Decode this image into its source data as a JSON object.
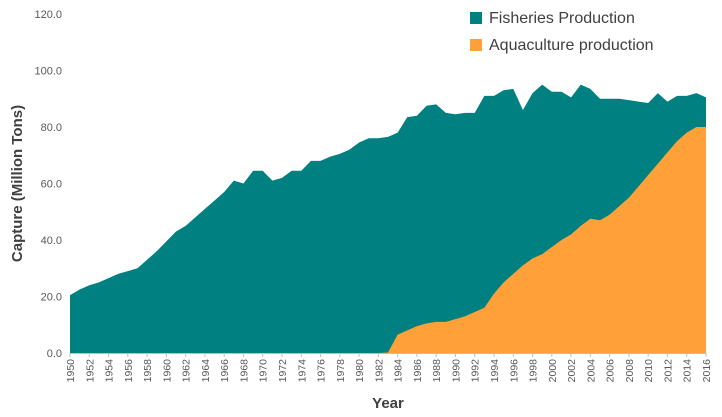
{
  "chart_data": {
    "type": "area",
    "stacked": false,
    "xlabel": "Year",
    "ylabel": "Capture (Million Tons)",
    "ylim": [
      0,
      120
    ],
    "y_ticks": [
      "0.0",
      "20.0",
      "40.0",
      "60.0",
      "80.0",
      "100.0",
      "120.0"
    ],
    "x": [
      1950,
      1951,
      1952,
      1953,
      1954,
      1955,
      1956,
      1957,
      1958,
      1959,
      1960,
      1961,
      1962,
      1963,
      1964,
      1965,
      1966,
      1967,
      1968,
      1969,
      1970,
      1971,
      1972,
      1973,
      1974,
      1975,
      1976,
      1977,
      1978,
      1979,
      1980,
      1981,
      1982,
      1983,
      1984,
      1985,
      1986,
      1987,
      1988,
      1989,
      1990,
      1991,
      1992,
      1993,
      1994,
      1995,
      1996,
      1997,
      1998,
      1999,
      2000,
      2001,
      2002,
      2003,
      2004,
      2005,
      2006,
      2007,
      2008,
      2009,
      2010,
      2011,
      2012,
      2013,
      2014,
      2015,
      2016
    ],
    "x_tick_labels": [
      "1950",
      "1952",
      "1954",
      "1956",
      "1958",
      "1960",
      "1962",
      "1964",
      "1966",
      "1968",
      "1970",
      "1972",
      "1974",
      "1976",
      "1978",
      "1980",
      "1982",
      "1984",
      "1986",
      "1988",
      "1990",
      "1992",
      "1994",
      "1996",
      "1998",
      "2000",
      "2002",
      "2004",
      "2006",
      "2008",
      "2010",
      "2012",
      "2014",
      "2016"
    ],
    "legend_position": "top-right",
    "grid": false,
    "series": [
      {
        "name": "Fisheries Production",
        "color": "#008080",
        "values": [
          20.5,
          22.5,
          24,
          25,
          26.5,
          28,
          29,
          30,
          33,
          36,
          39.5,
          43,
          45,
          48,
          51,
          54,
          57,
          61,
          60,
          64.5,
          64.5,
          61,
          62,
          64.5,
          64.5,
          68,
          68,
          69.5,
          70.5,
          72,
          74.5,
          76,
          76,
          76.5,
          78,
          83.5,
          84,
          87.5,
          88,
          85,
          84.5,
          85,
          85,
          91,
          91,
          93,
          93.5,
          86,
          92,
          95,
          92.5,
          92.5,
          90.5,
          95,
          93.5,
          90,
          90,
          90,
          89.5,
          89,
          88.5,
          92,
          89,
          91,
          91,
          92,
          90.5
        ]
      },
      {
        "name": "Aquaculture production",
        "color": "#FFA039",
        "values": [
          0,
          0,
          0,
          0,
          0,
          0,
          0,
          0,
          0,
          0,
          0,
          0,
          0,
          0,
          0,
          0,
          0,
          0,
          0,
          0,
          0,
          0,
          0,
          0,
          0,
          0,
          0,
          0,
          0,
          0,
          0,
          0,
          0,
          0.2,
          6.5,
          8,
          9.5,
          10.5,
          11,
          11,
          12,
          13,
          14.5,
          16,
          21,
          25,
          28,
          31,
          33.5,
          35,
          37.5,
          40,
          42,
          45,
          47.5,
          47,
          49,
          52,
          55,
          59,
          63,
          67,
          71,
          75,
          78,
          80,
          80
        ]
      }
    ]
  }
}
